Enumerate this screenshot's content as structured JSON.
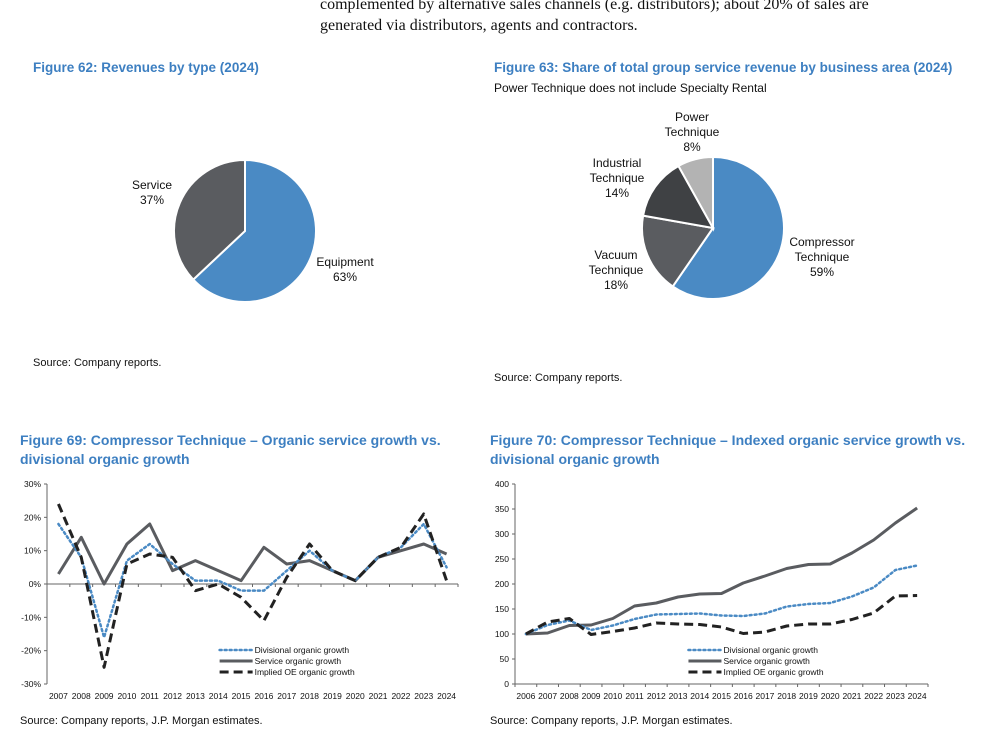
{
  "body_text": {
    "line1": "complemented by alternative sales channels (e.g. distributors); about 20% of sales are",
    "line2": "generated via distributors, agents and contractors."
  },
  "colors": {
    "title": "#3d7fc1",
    "blue": "#4a8ac4",
    "dark_gray": "#5a5c60",
    "darker_gray": "#3f4144",
    "light_gray": "#b3b3b3",
    "black": "#222222"
  },
  "chart_data": [
    {
      "type": "pie",
      "title": "Figure 62: Revenues by type (2024)",
      "source": "Source: Company reports.",
      "slices": [
        {
          "label": "Equipment",
          "value": 63,
          "value_label": "63%",
          "color": "#4a8ac4"
        },
        {
          "label": "Service",
          "value": 37,
          "value_label": "37%",
          "color": "#5a5c60"
        }
      ]
    },
    {
      "type": "pie",
      "title": "Figure 63: Share of total group service revenue by business area (2024)",
      "subtitle": "Power Technique does not include Specialty Rental",
      "source": "Source: Company reports.",
      "slices": [
        {
          "label": "Compressor Technique",
          "line1": "Compressor",
          "line2": "Technique",
          "value": 59,
          "value_label": "59%",
          "color": "#4a8ac4"
        },
        {
          "label": "Vacuum Technique",
          "line1": "Vacuum",
          "line2": "Technique",
          "value": 18,
          "value_label": "18%",
          "color": "#5a5c60"
        },
        {
          "label": "Industrial Technique",
          "line1": "Industrial",
          "line2": "Technique",
          "value": 14,
          "value_label": "14%",
          "color": "#3f4144"
        },
        {
          "label": "Power Technique",
          "line1": "Power",
          "line2": "Technique",
          "value": 8,
          "value_label": "8%",
          "color": "#b3b3b3"
        }
      ]
    },
    {
      "type": "line",
      "title_line1": "Figure 69: Compressor Technique – Organic service growth vs.",
      "title_line2": "divisional organic growth",
      "source": "Source: Company reports, J.P. Morgan estimates.",
      "x": [
        "2007",
        "2008",
        "2009",
        "2010",
        "2011",
        "2012",
        "2013",
        "2014",
        "2015",
        "2016",
        "2017",
        "2018",
        "2019",
        "2020",
        "2021",
        "2022",
        "2023",
        "2024"
      ],
      "ylim": [
        -30,
        30
      ],
      "yticks": [
        30,
        20,
        10,
        0,
        -10,
        -20,
        -30
      ],
      "ytick_labels": [
        "30%",
        "20%",
        "10%",
        "0%",
        "-10%",
        "-20%",
        "-30%"
      ],
      "legend": "bottom-center",
      "series": [
        {
          "name": "Divisional organic growth",
          "style": "dotted",
          "color": "#4a8ac4",
          "values": [
            18,
            8,
            -16,
            7,
            12,
            6,
            1,
            1,
            -2,
            -2,
            4,
            10,
            4,
            1,
            8,
            11,
            18,
            5
          ]
        },
        {
          "name": "Service organic growth",
          "style": "solid",
          "color": "#5a5c60",
          "values": [
            3,
            14,
            0,
            12,
            18,
            4,
            7,
            4,
            1,
            11,
            6,
            7,
            4,
            1,
            8,
            10,
            12,
            9
          ]
        },
        {
          "name": "Implied OE organic growth",
          "style": "dashed",
          "color": "#222222",
          "values": [
            24,
            8,
            -25,
            6,
            9,
            8,
            -2,
            0,
            -4,
            -11,
            2,
            12,
            4,
            1,
            8,
            11,
            21,
            1
          ]
        }
      ]
    },
    {
      "type": "line",
      "title_line1": "Figure 70: Compressor Technique – Indexed organic service growth vs.",
      "title_line2": "divisional organic growth",
      "source": "Source: Company reports, J.P. Morgan estimates.",
      "x": [
        "2006",
        "2007",
        "2008",
        "2009",
        "2010",
        "2011",
        "2012",
        "2013",
        "2014",
        "2015",
        "2016",
        "2017",
        "2018",
        "2019",
        "2020",
        "2021",
        "2022",
        "2023",
        "2024"
      ],
      "ylim": [
        0,
        400
      ],
      "yticks": [
        400,
        350,
        300,
        250,
        200,
        150,
        100,
        50,
        0
      ],
      "ytick_labels": [
        "400",
        "350",
        "300",
        "250",
        "200",
        "150",
        "100",
        "50",
        "0"
      ],
      "legend": "bottom-center",
      "series": [
        {
          "name": "Divisional organic growth",
          "style": "dotted",
          "color": "#4a8ac4",
          "values": [
            100,
            118,
            127,
            108,
            117,
            130,
            139,
            140,
            141,
            137,
            136,
            141,
            155,
            160,
            162,
            175,
            193,
            228,
            237
          ]
        },
        {
          "name": "Service organic growth",
          "style": "solid",
          "color": "#5a5c60",
          "values": [
            100,
            102,
            117,
            118,
            131,
            156,
            162,
            174,
            180,
            181,
            202,
            216,
            231,
            239,
            240,
            262,
            288,
            322,
            352
          ]
        },
        {
          "name": "Implied OE organic growth",
          "style": "dashed",
          "color": "#222222",
          "values": [
            100,
            124,
            131,
            99,
            105,
            112,
            122,
            120,
            119,
            114,
            101,
            104,
            116,
            120,
            120,
            129,
            142,
            176,
            177
          ]
        }
      ]
    }
  ]
}
